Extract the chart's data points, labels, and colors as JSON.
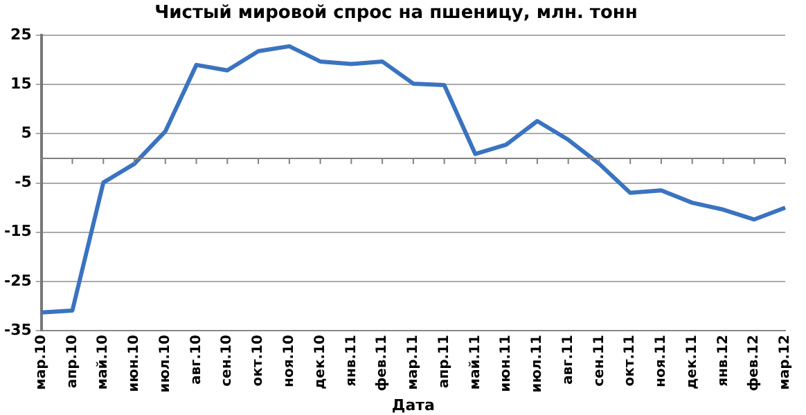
{
  "chart_data": {
    "type": "line",
    "title": "Чистый мировой спрос на пшеницу, млн. тонн",
    "xlabel": "Дата",
    "categories": [
      "мар.10",
      "апр.10",
      "май.10",
      "июн.10",
      "июл.10",
      "авг.10",
      "сен.10",
      "окт.10",
      "ноя.10",
      "дек.10",
      "янв.11",
      "фев.11",
      "мар.11",
      "апр.11",
      "май.11",
      "июн.11",
      "июл.11",
      "авг.11",
      "сен.11",
      "окт.11",
      "ноя.11",
      "дек.11",
      "янв.12",
      "фев.12",
      "мар.12"
    ],
    "series": [
      {
        "color": "#3a73c0",
        "values": [
          -31.3,
          -30.9,
          -4.9,
          -1.1,
          5.5,
          19,
          17.9,
          21.8,
          22.8,
          19.7,
          19.2,
          19.7,
          15.2,
          14.9,
          0.9,
          2.8,
          7.6,
          3.8,
          -1.1,
          -7,
          -6.5,
          -9,
          -10.4,
          -12.4,
          -10
        ]
      }
    ],
    "ylim": [
      -35,
      25
    ],
    "yticks": [
      -35,
      -25,
      -15,
      -5,
      5,
      15,
      25
    ],
    "grid": "y",
    "legend": false,
    "marker": "none",
    "line_style": "solid",
    "ref_lines": [
      {
        "axis": "y",
        "value": 0,
        "color": "#808080"
      }
    ]
  }
}
